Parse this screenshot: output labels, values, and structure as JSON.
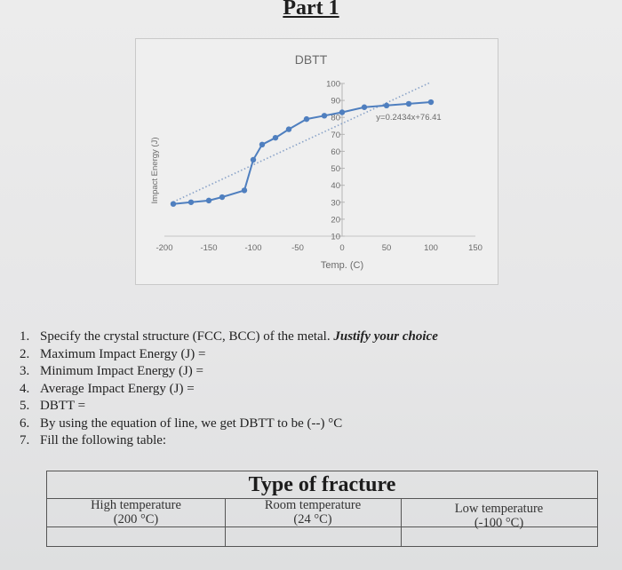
{
  "heading": "Part 1",
  "chart_data": {
    "type": "scatter",
    "title": "DBTT",
    "xlabel": "Temp. (C)",
    "ylabel": "Impact Energy (J)",
    "xlim": [
      -200,
      150
    ],
    "ylim": [
      10,
      100
    ],
    "x_ticks": [
      "-200",
      "-150",
      "-100",
      "-50",
      "0",
      "50",
      "100",
      "150"
    ],
    "y_ticks": [
      "100",
      "90",
      "80",
      "70",
      "60",
      "50",
      "40",
      "30",
      "20",
      "10"
    ],
    "trendline_label": "y=0.2434x+76.41",
    "trendline": {
      "slope": 0.2434,
      "intercept": 76.41,
      "x_range": [
        -190,
        100
      ]
    },
    "series": [
      {
        "x": [
          -190,
          -170,
          -150,
          -135,
          -110,
          -100,
          -90,
          -75,
          -60,
          -40,
          -20,
          0,
          25,
          50,
          75,
          100
        ],
        "y": [
          29,
          30,
          31,
          33,
          37,
          55,
          64,
          68,
          73,
          79,
          81,
          83,
          86,
          87,
          88,
          89
        ]
      }
    ],
    "colors": {
      "series": "#4f7fbf",
      "trendline": "#8aa3c8"
    }
  },
  "questions": [
    {
      "num": "1.",
      "text": "Specify the crystal structure (FCC, BCC) of the metal. ",
      "emph": "Justify your choice"
    },
    {
      "num": "2.",
      "text": "Maximum Impact Energy (J) =",
      "emph": ""
    },
    {
      "num": "3.",
      "text": "Minimum Impact Energy (J) =",
      "emph": ""
    },
    {
      "num": "4.",
      "text": "Average Impact Energy (J) =",
      "emph": ""
    },
    {
      "num": "5.",
      "text": "DBTT =",
      "emph": ""
    },
    {
      "num": "6.",
      "text": "By using the equation of line, we get DBTT to be (--) °C",
      "emph": ""
    },
    {
      "num": "7.",
      "text": "Fill the following table:",
      "emph": ""
    }
  ],
  "table": {
    "title": "Type of fracture",
    "columns": [
      {
        "label": "High temperature",
        "sub": "(200 °C)"
      },
      {
        "label": "Room temperature",
        "sub": "(24 °C)"
      },
      {
        "label": "Low temperature",
        "sub": "(-100 °C)"
      }
    ]
  }
}
